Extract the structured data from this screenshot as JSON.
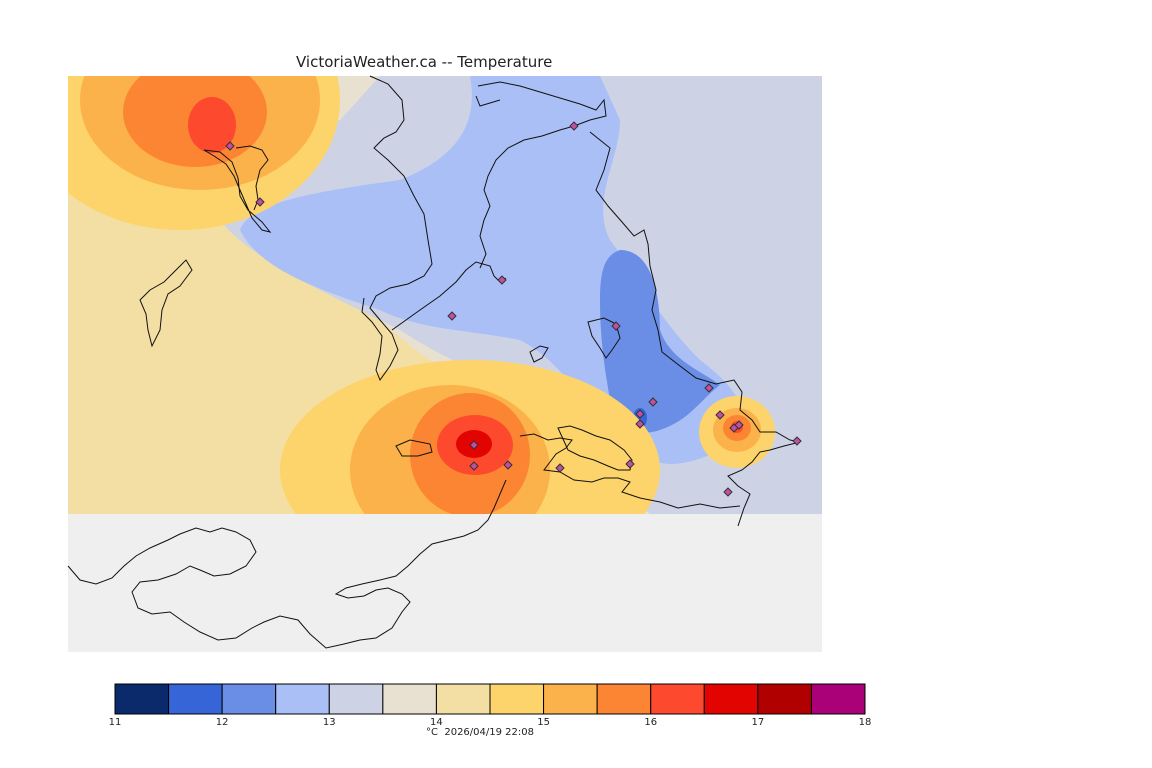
{
  "title": "VictoriaWeather.ca -- Temperature",
  "map": {
    "background_color": "#efefef",
    "land_outside_color": "#ffffff",
    "stations_count_visible": 20
  },
  "legend": {
    "unit_and_time": "°C  2026/04/19 22:08",
    "ticks": [
      "11",
      "12",
      "13",
      "14",
      "15",
      "16",
      "17",
      "18"
    ],
    "bins": [
      "#0b2a6b",
      "#3565d6",
      "#6a8de6",
      "#a9bff5",
      "#cdd3e5",
      "#e8e0d0",
      "#f3dfa3",
      "#fdd46b",
      "#fcb24a",
      "#fc8533",
      "#fd4a2e",
      "#e10400",
      "#b10000",
      "#aa0078"
    ]
  }
}
